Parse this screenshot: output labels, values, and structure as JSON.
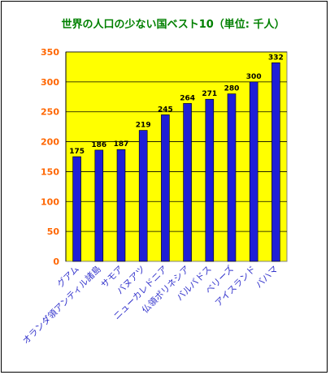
{
  "chart_data": {
    "type": "bar",
    "title": "世界の人口の少ない国ベスト10（単位: 千人）",
    "categories": [
      "グアム",
      "オランダ領アンティル諸島",
      "サモア",
      "バヌアツ",
      "ニューカレドニア",
      "仏領ポリネシア",
      "バルバドス",
      "ベリーズ",
      "アイスランド",
      "バハマ"
    ],
    "values": [
      175,
      186,
      187,
      219,
      245,
      264,
      271,
      280,
      300,
      332
    ],
    "data_labels": [
      "175",
      "186",
      "187",
      "219",
      "245",
      "264",
      "271",
      "280",
      "300",
      "332"
    ],
    "yticks": [
      "0",
      "50",
      "100",
      "150",
      "200",
      "250",
      "300",
      "350"
    ],
    "ylim": [
      0,
      350
    ],
    "grid": true,
    "colors": {
      "bar": "#1f1fd6",
      "plot_background": "#ffff00",
      "title": "#008000",
      "ytick": "#ff6600",
      "xtick": "#3333cc"
    }
  }
}
